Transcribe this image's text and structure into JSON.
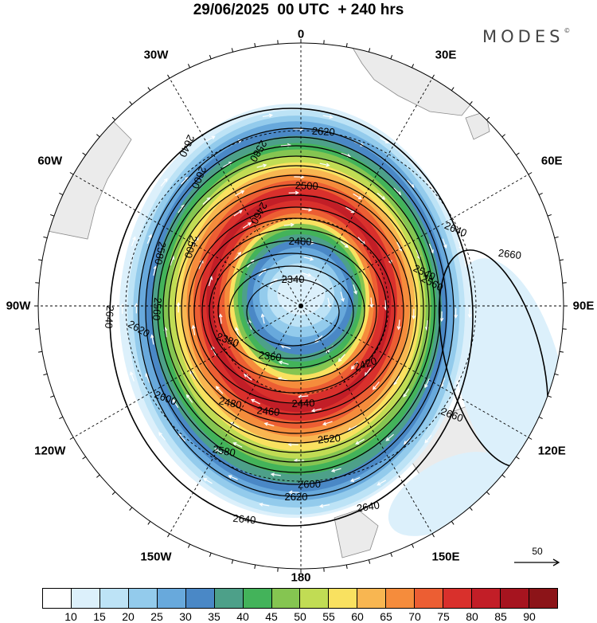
{
  "title": "29/06/2025  00 UTC  + 240 hrs",
  "brand": "MODES",
  "brand_mark": "©",
  "longitude_labels": [
    "0",
    "30E",
    "60E",
    "90E",
    "120E",
    "150E",
    "180",
    "150W",
    "120W",
    "90W",
    "60W",
    "30W"
  ],
  "contours": [
    {
      "value": "2340"
    },
    {
      "value": "2360"
    },
    {
      "value": "2380"
    },
    {
      "value": "2400"
    },
    {
      "value": "2420"
    },
    {
      "value": "2440"
    },
    {
      "value": "2460"
    },
    {
      "value": "2480"
    },
    {
      "value": "2500"
    },
    {
      "value": "2520"
    },
    {
      "value": "2540"
    },
    {
      "value": "2560"
    },
    {
      "value": "2580"
    },
    {
      "value": "2600"
    },
    {
      "value": "2620"
    },
    {
      "value": "2640"
    },
    {
      "value": "2660"
    }
  ],
  "reference_vector": {
    "value": "50"
  },
  "colorbar": {
    "colors": [
      "#ffffff",
      "#dcf0fb",
      "#bde3f6",
      "#93cbec",
      "#68a9dc",
      "#4a88c6",
      "#4da089",
      "#43b35a",
      "#85c551",
      "#c1dc54",
      "#f9e160",
      "#f8b651",
      "#f58c3c",
      "#ec5e33",
      "#d9302c",
      "#c21e27",
      "#a6141f",
      "#8c1418"
    ],
    "ticks": [
      "10",
      "15",
      "20",
      "25",
      "30",
      "35",
      "40",
      "45",
      "50",
      "55",
      "60",
      "65",
      "70",
      "75",
      "80",
      "85",
      "90"
    ]
  }
}
